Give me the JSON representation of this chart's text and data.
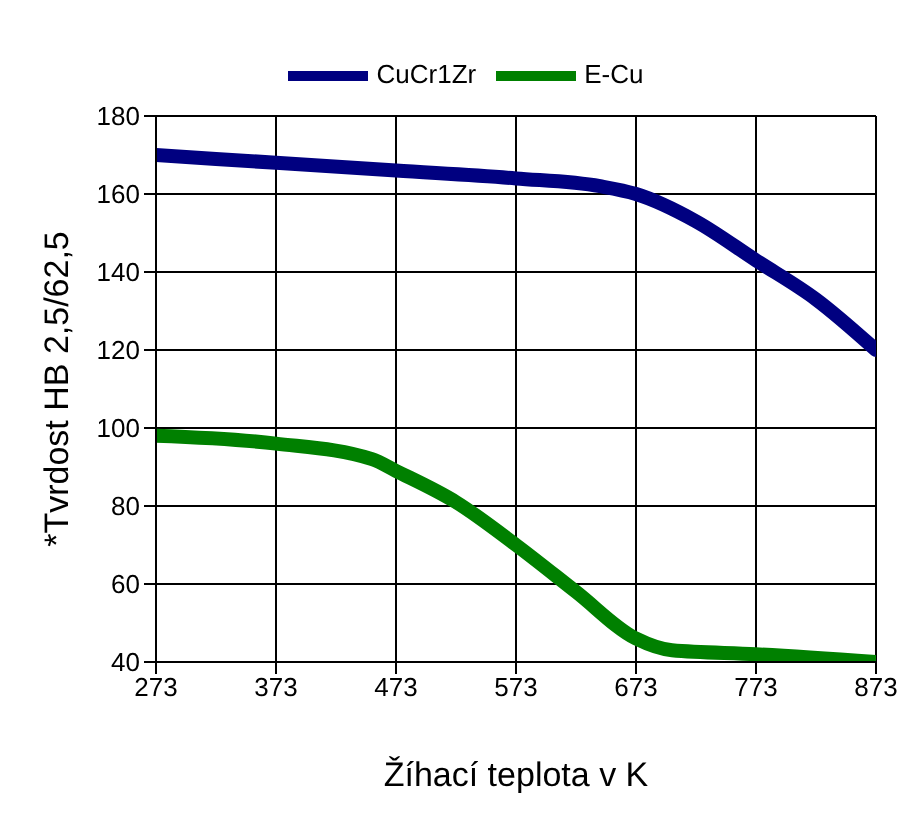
{
  "chart_data": {
    "type": "line",
    "xlabel": "Žíhací teplota v K",
    "ylabel": "*Tvrdost HB 2,5/62,5",
    "xlim": [
      273,
      873
    ],
    "xticks": [
      273,
      373,
      473,
      573,
      673,
      773,
      873
    ],
    "ylim": [
      40,
      180
    ],
    "yticks": [
      40,
      60,
      80,
      100,
      120,
      140,
      160,
      180
    ],
    "grid": true,
    "legend": "top",
    "marker": "none",
    "line_style": "solid",
    "series": [
      {
        "name": "CuCr1Zr",
        "color": "#000080",
        "x": [
          273,
          373,
          473,
          573,
          643,
          673,
          723,
          773,
          823,
          873
        ],
        "values": [
          170,
          168,
          166,
          164,
          162,
          160,
          153,
          143,
          133,
          120
        ]
      },
      {
        "name": "E-Cu",
        "color": "#008000",
        "x": [
          273,
          373,
          453,
          473,
          523,
          573,
          623,
          673,
          703,
          773,
          873
        ],
        "values": [
          98,
          96,
          92,
          89,
          81,
          70,
          58,
          46,
          43,
          42,
          40
        ]
      }
    ]
  }
}
